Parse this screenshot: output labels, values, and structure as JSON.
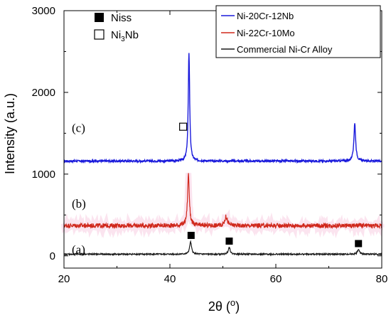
{
  "chart_data": {
    "type": "line",
    "title": "",
    "xlabel_main": "2θ (",
    "xlabel_sup": "o",
    "xlabel_end": ")",
    "ylabel": "Intensity (a.u.)",
    "xlim": [
      20,
      80
    ],
    "ylim": [
      -150,
      3000
    ],
    "xticks": [
      "20",
      "40",
      "60",
      "80"
    ],
    "xtick_values": [
      20,
      40,
      60,
      80
    ],
    "yticks": [
      "0",
      "1000",
      "2000",
      "3000"
    ],
    "ytick_values": [
      0,
      1000,
      2000,
      3000
    ],
    "legend_position": "top-right",
    "series": [
      {
        "name": "Ni-20Cr-12Nb",
        "label": "(c)",
        "color": "#1a1adc",
        "baseline": 1160,
        "label_y": 1570,
        "peaks": [
          {
            "x": 43.6,
            "height": 1330,
            "width": 0.16
          },
          {
            "x": 74.9,
            "height": 460,
            "width": 0.2
          }
        ]
      },
      {
        "name": "Ni-22Cr-10Mo",
        "label": "(b)",
        "color": "#d0281c",
        "baseline": 370,
        "label_y": 640,
        "peaks": [
          {
            "x": 43.5,
            "height": 630,
            "width": 0.2
          },
          {
            "x": 50.6,
            "height": 110,
            "width": 0.3
          }
        ]
      },
      {
        "name": "Commercial Ni-Cr Alloy",
        "label": "(a)",
        "color": "#1a1a1a",
        "baseline": 20,
        "label_y": 80,
        "peaks": [
          {
            "x": 43.9,
            "height": 150,
            "width": 0.22
          },
          {
            "x": 51.2,
            "height": 85,
            "width": 0.22
          },
          {
            "x": 75.6,
            "height": 55,
            "width": 0.25
          }
        ]
      }
    ],
    "markers": [
      {
        "kind": "filled",
        "x": 44.0,
        "y": 250
      },
      {
        "kind": "filled",
        "x": 51.2,
        "y": 180
      },
      {
        "kind": "filled",
        "x": 75.6,
        "y": 150
      },
      {
        "kind": "open",
        "x": 42.5,
        "y": 1580
      }
    ],
    "marker_legend": [
      {
        "kind": "filled",
        "label": "Niss"
      },
      {
        "kind": "open",
        "label_main": "Ni",
        "label_sub": "3",
        "label_end": "Nb"
      }
    ]
  }
}
